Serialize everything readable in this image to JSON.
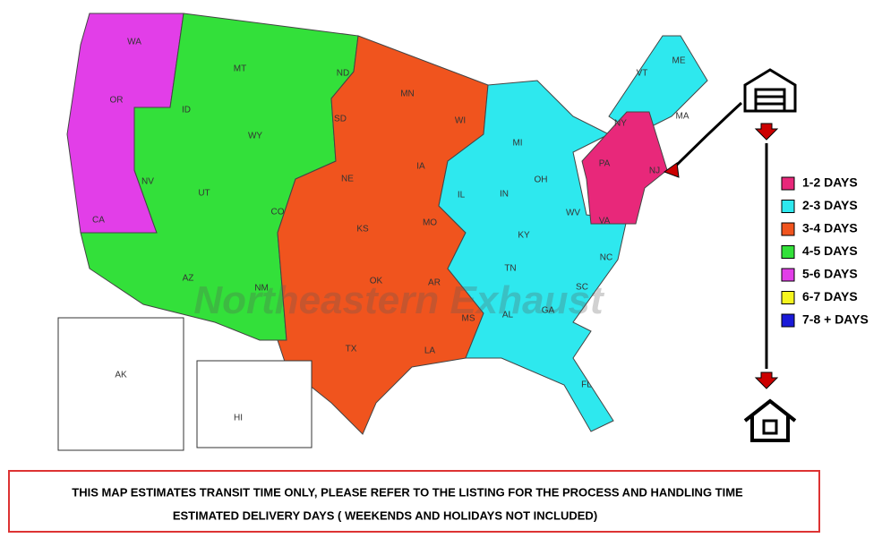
{
  "map": {
    "watermark": "Northeastern Exhaust",
    "states": [
      "WA",
      "OR",
      "ID",
      "MT",
      "WY",
      "ND",
      "SD",
      "MN",
      "WI",
      "MI",
      "NV",
      "UT",
      "CO",
      "NE",
      "IA",
      "IL",
      "IN",
      "OH",
      "PA",
      "NY",
      "VT",
      "ME",
      "MA",
      "NJ",
      "CA",
      "KS",
      "MO",
      "KY",
      "WV",
      "VA",
      "AZ",
      "NM",
      "OK",
      "AR",
      "TN",
      "NC",
      "SC",
      "MS",
      "AL",
      "GA",
      "TX",
      "LA",
      "FL",
      "AK",
      "HI"
    ],
    "legend": [
      {
        "label": "1-2 DAYS",
        "color": "#e8287a"
      },
      {
        "label": "2-3 DAYS",
        "color": "#2ee8ee"
      },
      {
        "label": "3-4 DAYS",
        "color": "#f0541e"
      },
      {
        "label": "4-5 DAYS",
        "color": "#33e03a"
      },
      {
        "label": "5-6 DAYS",
        "color": "#e23ee8"
      },
      {
        "label": "6-7 DAYS",
        "color": "#f5f51e"
      },
      {
        "label": "7-8 + DAYS",
        "color": "#1a1ad8"
      }
    ],
    "notice": [
      "THIS MAP ESTIMATES TRANSIT TIME ONLY, PLEASE REFER TO THE LISTING FOR THE PROCESS AND HANDLING TIME",
      "ESTIMATED DELIVERY DAYS ( WEEKENDS AND HOLIDAYS NOT INCLUDED)"
    ]
  }
}
